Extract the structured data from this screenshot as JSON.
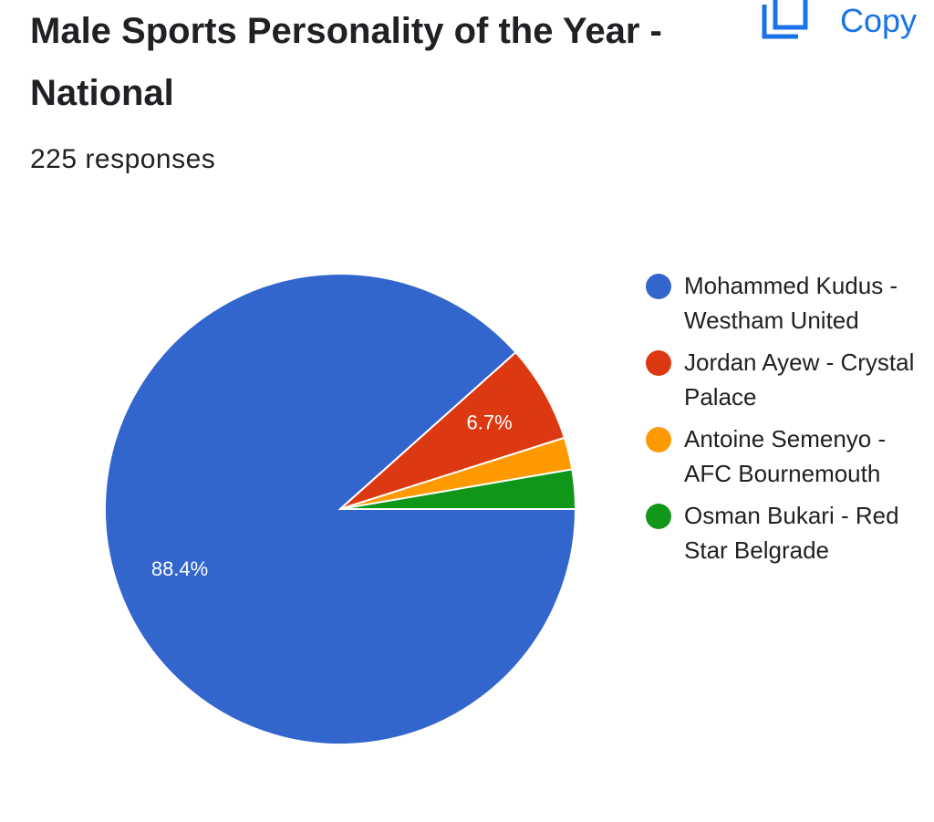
{
  "chart_data": {
    "type": "pie",
    "title": "Male Sports Personality of the Year - National",
    "subtitle": "225 responses",
    "copy_button": "Copy",
    "categories": [
      "Mohammed Kudus - Westham United",
      "Jordan Ayew - Crystal Palace",
      "Antoine Semenyo - AFC Bournemouth",
      "Osman Bukari - Red Star Belgrade"
    ],
    "values": [
      88.4,
      6.7,
      2.2,
      2.7
    ],
    "value_labels": [
      "88.4%",
      "6.7%",
      null,
      null
    ],
    "colors": [
      "#3366cc",
      "#dc3912",
      "#ff9900",
      "#109618"
    ],
    "legend": "right"
  }
}
